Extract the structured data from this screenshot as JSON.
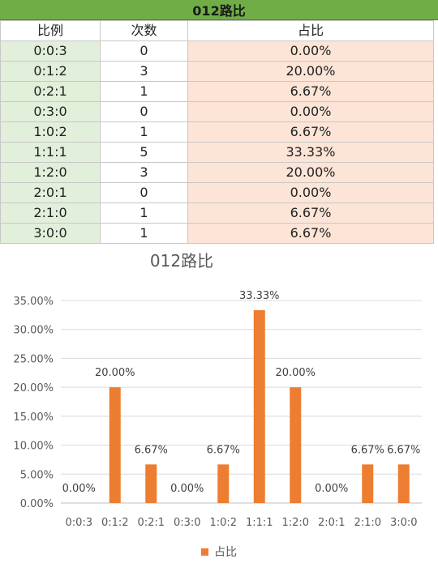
{
  "sheet": {
    "title": "012路比",
    "headers": [
      "比例",
      "次数",
      "占比"
    ],
    "rows": [
      {
        "ratio": "0:0:3",
        "count": "0",
        "pct": "0.00%"
      },
      {
        "ratio": "0:1:2",
        "count": "3",
        "pct": "20.00%"
      },
      {
        "ratio": "0:2:1",
        "count": "1",
        "pct": "6.67%"
      },
      {
        "ratio": "0:3:0",
        "count": "0",
        "pct": "0.00%"
      },
      {
        "ratio": "1:0:2",
        "count": "1",
        "pct": "6.67%"
      },
      {
        "ratio": "1:1:1",
        "count": "5",
        "pct": "33.33%"
      },
      {
        "ratio": "1:2:0",
        "count": "3",
        "pct": "20.00%"
      },
      {
        "ratio": "2:0:1",
        "count": "0",
        "pct": "0.00%"
      },
      {
        "ratio": "2:1:0",
        "count": "1",
        "pct": "6.67%"
      },
      {
        "ratio": "3:0:0",
        "count": "1",
        "pct": "6.67%"
      }
    ]
  },
  "chart_data": {
    "type": "bar",
    "title": "012路比",
    "categories": [
      "0:0:3",
      "0:1:2",
      "0:2:1",
      "0:3:0",
      "1:0:2",
      "1:1:1",
      "1:2:0",
      "2:0:1",
      "2:1:0",
      "3:0:0"
    ],
    "series": [
      {
        "name": "占比",
        "values": [
          0.0,
          20.0,
          6.67,
          0.0,
          6.67,
          33.33,
          20.0,
          0.0,
          6.67,
          6.67
        ],
        "color": "#ed7d31"
      }
    ],
    "data_labels": [
      "0.00%",
      "20.00%",
      "6.67%",
      "0.00%",
      "6.67%",
      "33.33%",
      "20.00%",
      "0.00%",
      "6.67%",
      "6.67%"
    ],
    "y_ticks": [
      "0.00%",
      "5.00%",
      "10.00%",
      "15.00%",
      "20.00%",
      "25.00%",
      "30.00%",
      "35.00%"
    ],
    "ylim": [
      0,
      35
    ],
    "grid": true,
    "legend_position": "bottom"
  },
  "colors": {
    "header_bg": "#70ad47",
    "ratio_col_bg": "#e2efda",
    "pct_col_bg": "#fce4d6",
    "bar": "#ed7d31"
  }
}
